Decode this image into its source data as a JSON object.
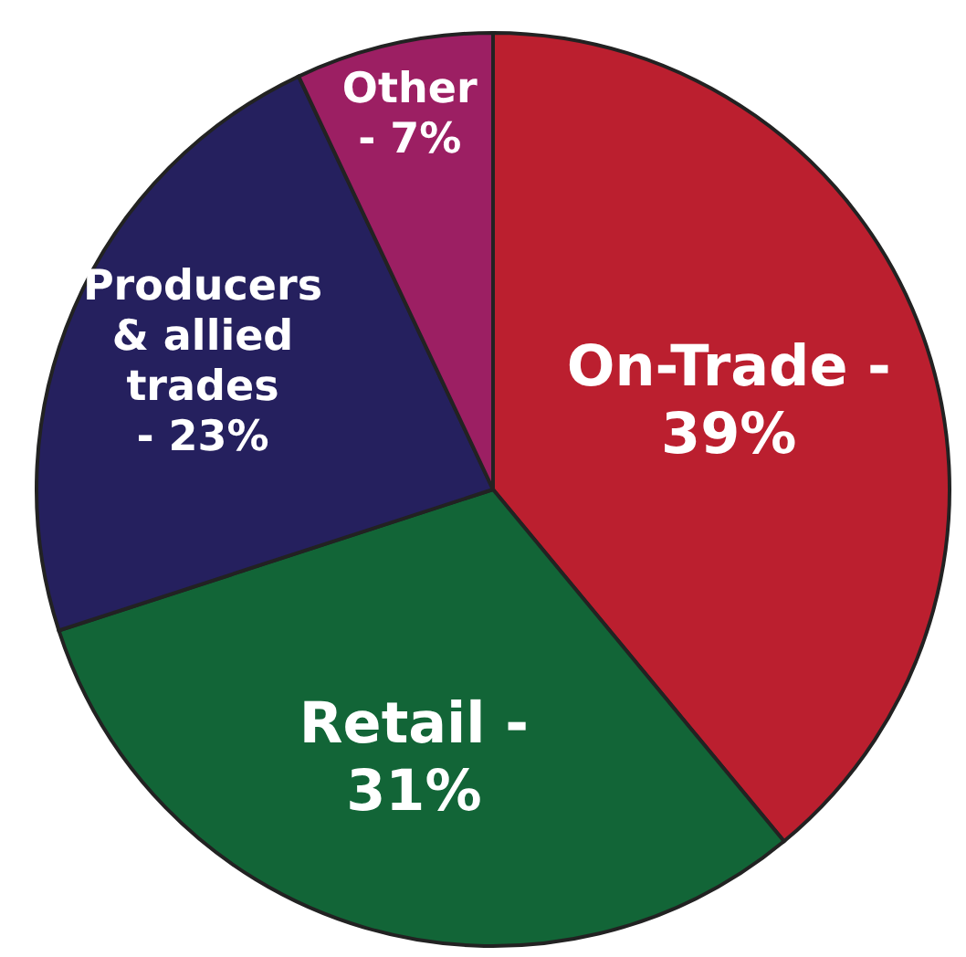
{
  "chart_data": {
    "type": "pie",
    "categories": [
      "On-Trade -",
      "Retail -",
      "Producers & allied trades -",
      "Other -"
    ],
    "values": [
      39,
      31,
      23,
      7
    ],
    "value_labels": [
      "39%",
      "31%",
      "23%",
      "7%"
    ],
    "colors": [
      "#bb1f2f",
      "#126537",
      "#25205e",
      "#9c1f63"
    ]
  }
}
